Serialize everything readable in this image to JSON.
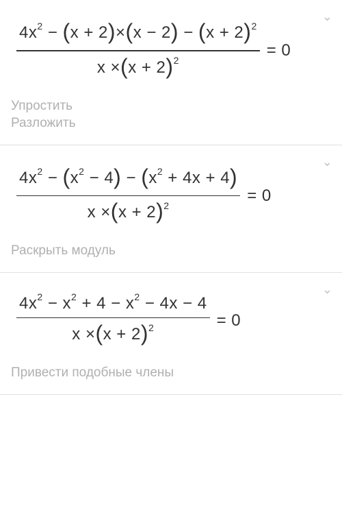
{
  "steps": [
    {
      "numerator_parts": [
        "4x",
        "2",
        " − ",
        "(",
        "x + 2",
        ")",
        "×",
        "(",
        "x − 2",
        ")",
        " − ",
        "(",
        "x + 2",
        ")",
        "2"
      ],
      "denominator_parts": [
        "x ×",
        "(",
        "x + 2",
        ")",
        "2"
      ],
      "rhs": "= 0",
      "hints": [
        "Упростить",
        "Разложить"
      ]
    },
    {
      "numerator_parts": [
        "4x",
        "2",
        " − ",
        "(",
        "x",
        "2",
        " − 4",
        ")",
        " − ",
        "(",
        "x",
        "2",
        " + 4x + 4",
        ")"
      ],
      "denominator_parts": [
        "x ×",
        "(",
        "x + 2",
        ")",
        "2"
      ],
      "rhs": "= 0",
      "hints": [
        "Раскрыть модуль"
      ]
    },
    {
      "numerator_parts": [
        "4x",
        "2",
        " − x",
        "2",
        " + 4 − x",
        "2",
        " − 4x − 4"
      ],
      "denominator_parts": [
        "x ×",
        "(",
        "x + 2",
        ")",
        "2"
      ],
      "rhs": "= 0",
      "hints": [
        "Привести подобные члены"
      ]
    }
  ],
  "colors": {
    "text": "#333333",
    "hint": "#b0b0b0",
    "divider": "#e0e0e0",
    "background": "#ffffff"
  },
  "typography": {
    "math_fontsize": 24,
    "sup_fontsize": 14,
    "hint_fontsize": 19,
    "paren_fontsize": 32
  }
}
